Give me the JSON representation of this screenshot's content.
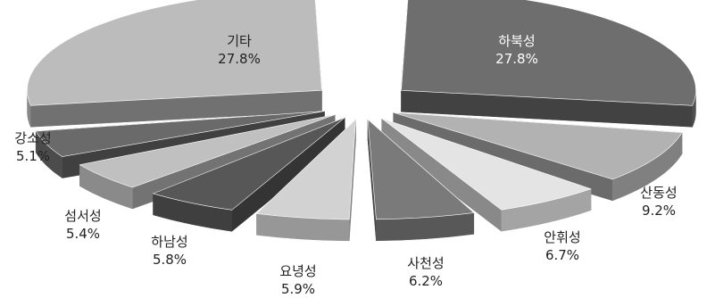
{
  "chart_data": {
    "type": "pie",
    "categories": [
      "하북성",
      "산동성",
      "안휘성",
      "사천성",
      "요녕성",
      "하남성",
      "섬서성",
      "강소성",
      "기타"
    ],
    "values": [
      27.8,
      9.2,
      6.7,
      6.2,
      5.9,
      5.8,
      5.4,
      5.1,
      27.8
    ],
    "value_labels": [
      "27.8%",
      "9.2%",
      "6.7%",
      "6.2%",
      "5.9%",
      "5.8%",
      "5.4%",
      "5.1%",
      "27.8%"
    ],
    "colors": [
      "#6e6e6e",
      "#b2b2b2",
      "#e4e4e4",
      "#7a7a7a",
      "#d2d2d2",
      "#575757",
      "#c0c0c0",
      "#6a6a6a",
      "#bcbcbc"
    ],
    "exploded": true,
    "three_d": true
  }
}
